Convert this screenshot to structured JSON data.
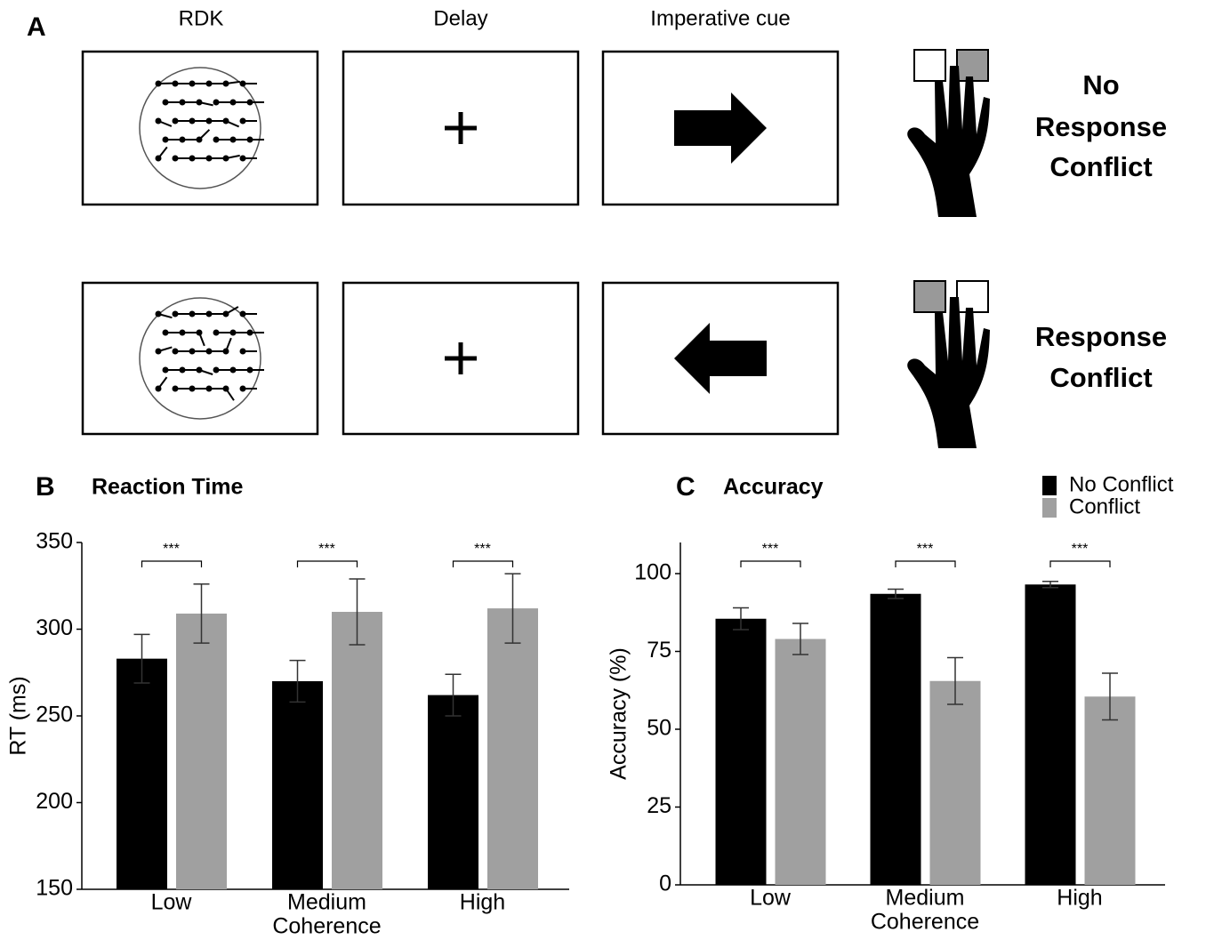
{
  "panel_a": {
    "label": "A",
    "columns": [
      "RDK",
      "Delay",
      "Imperative cue"
    ],
    "rows": [
      {
        "label_lines": [
          "No",
          "Response",
          "Conflict"
        ]
      },
      {
        "label_lines": [
          "Response",
          "Conflict"
        ]
      }
    ]
  },
  "chart_data": [
    {
      "type": "bar",
      "panel": "B",
      "title": "Reaction Time",
      "ylabel": "RT (ms)",
      "xlabel": "Coherence",
      "categories": [
        "Low",
        "Medium",
        "High"
      ],
      "series": [
        {
          "color": "#000000",
          "values": [
            283,
            270,
            262
          ],
          "errors": [
            14,
            12,
            12
          ]
        },
        {
          "color": "#a0a0a0",
          "values": [
            309,
            310,
            312
          ],
          "errors": [
            17,
            19,
            20
          ]
        }
      ],
      "significance": [
        "***",
        "***",
        "***"
      ],
      "ylim": [
        150,
        350
      ],
      "yticks": [
        150,
        200,
        250,
        300,
        350
      ]
    },
    {
      "type": "bar",
      "panel": "C",
      "title": "Accuracy",
      "ylabel": "Accuracy (%)",
      "xlabel": "Coherence",
      "categories": [
        "Low",
        "Medium",
        "High"
      ],
      "series": [
        {
          "name": "No Conflict",
          "color": "#000000",
          "values": [
            85.5,
            93.5,
            96.5
          ],
          "errors": [
            3.5,
            1.5,
            1
          ]
        },
        {
          "name": "Conflict",
          "color": "#a0a0a0",
          "values": [
            79,
            65.5,
            60.5
          ],
          "errors": [
            5,
            7.5,
            7.5
          ]
        }
      ],
      "significance": [
        "***",
        "***",
        "***"
      ],
      "ylim": [
        0,
        110
      ],
      "yticks": [
        0,
        25,
        50,
        75,
        100
      ],
      "legend": "top-right"
    }
  ]
}
